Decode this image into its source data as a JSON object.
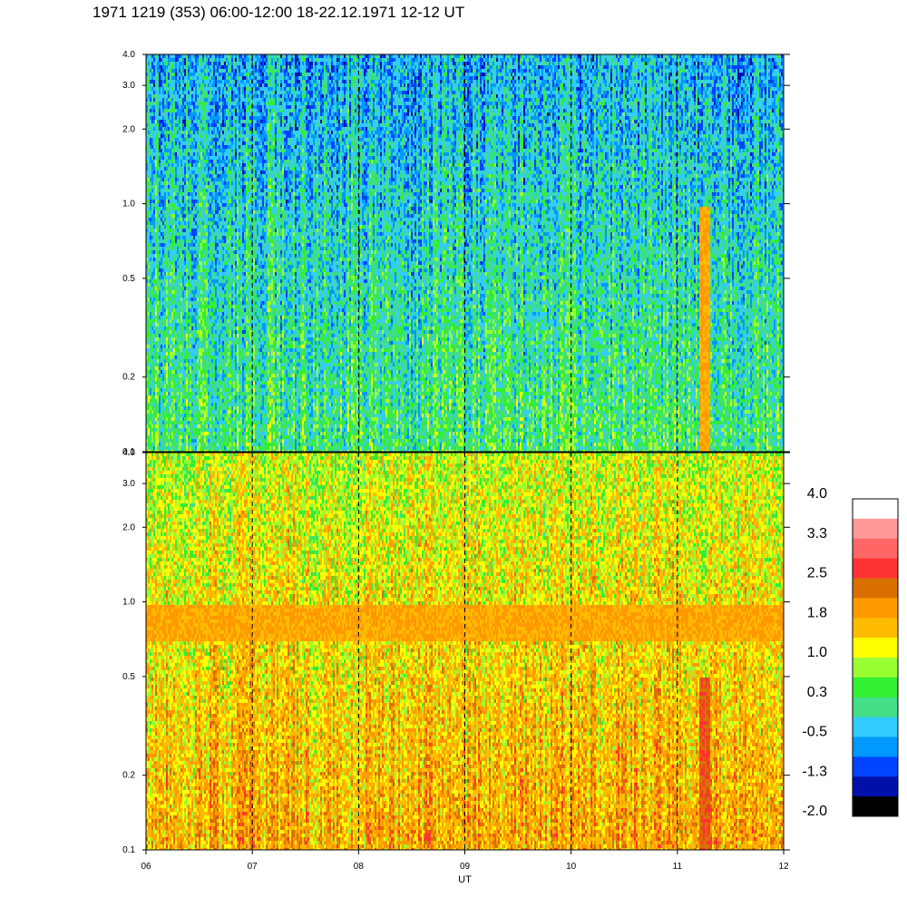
{
  "title": "1971 1219 (353) 06:00-12:00 18-22.12.1971  12-12 UT",
  "chart_data": [
    {
      "type": "heatmap",
      "panel": "top",
      "x_range": [
        6,
        12
      ],
      "y_range": [
        0.1,
        4.0
      ],
      "y_scale": "log",
      "x_ticks": [
        "06",
        "07",
        "08",
        "09",
        "10",
        "11",
        "12"
      ],
      "y_ticks": [
        {
          "label": "4.0",
          "value": 4.0
        },
        {
          "label": "3.0",
          "value": 3.0
        },
        {
          "label": "2.0",
          "value": 2.0
        },
        {
          "label": "1.0",
          "value": 1.0
        },
        {
          "label": "0.5",
          "value": 0.5
        },
        {
          "label": "0.2",
          "value": 0.2
        },
        {
          "label": "0.1",
          "value": 0.1
        }
      ],
      "dashed_hour_lines": [
        7,
        8,
        9,
        10,
        11
      ],
      "dominant_level_low_freq": 0.3,
      "dominant_level_high_freq": -0.5,
      "features": [
        {
          "description": "enhancement",
          "x_start": 11.2,
          "x_end": 11.3,
          "y_max": 1.0,
          "level": 1.8
        }
      ]
    },
    {
      "type": "heatmap",
      "panel": "bottom",
      "x_range": [
        6,
        12
      ],
      "y_range": [
        0.1,
        4.0
      ],
      "y_scale": "log",
      "x_ticks": [
        "06",
        "07",
        "08",
        "09",
        "10",
        "11",
        "12"
      ],
      "y_ticks": [
        {
          "label": "4.0",
          "value": 4.0
        },
        {
          "label": "3.0",
          "value": 3.0
        },
        {
          "label": "2.0",
          "value": 2.0
        },
        {
          "label": "1.0",
          "value": 1.0
        },
        {
          "label": "0.5",
          "value": 0.5
        },
        {
          "label": "0.2",
          "value": 0.2
        },
        {
          "label": "0.1",
          "value": 0.1
        }
      ],
      "xlabel": "UT",
      "dashed_hour_lines": [
        7,
        8,
        9,
        10,
        11
      ],
      "dominant_level_low_freq": 1.8,
      "dominant_level_high_freq": 1.0,
      "features": [
        {
          "description": "band",
          "y_min": 0.7,
          "y_max": 1.0,
          "level": 1.8
        },
        {
          "description": "enhancement",
          "x_start": 11.2,
          "x_end": 11.3,
          "y_max": 0.5,
          "level": 2.5
        }
      ]
    }
  ],
  "colorbar": {
    "labels": [
      "4.0",
      "3.3",
      "2.5",
      "1.8",
      "1.0",
      "0.3",
      "-0.5",
      "-1.3",
      "-2.0"
    ],
    "colors": [
      "#ffffff",
      "#ff9999",
      "#ff6666",
      "#ff3333",
      "#d97000",
      "#ff9900",
      "#ffbb00",
      "#ffff00",
      "#99ff33",
      "#33ee33",
      "#44dd88",
      "#33ccff",
      "#0099ff",
      "#0044ff",
      "#0011aa",
      "#000000"
    ]
  },
  "colors": {
    "top_dominant": "#33ee33",
    "bottom_dominant": "#ff9900"
  }
}
